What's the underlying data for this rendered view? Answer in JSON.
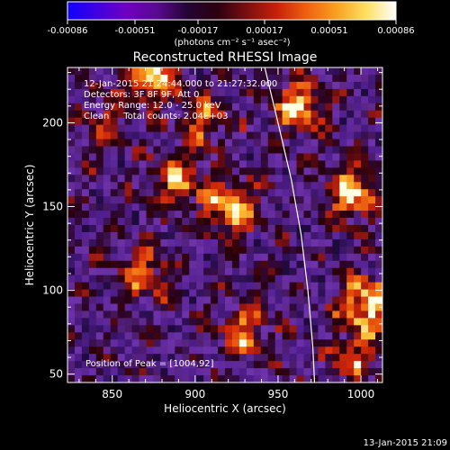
{
  "colorbar": {
    "tick_labels": [
      "-0.00086",
      "-0.00051",
      "-0.00017",
      "0.00017",
      "0.00051",
      "0.00086"
    ],
    "units_label": "(photons cm⁻² s⁻¹ asec⁻²)",
    "colors": [
      "#1000ff",
      "#4000e0",
      "#7000c0",
      "#5a0a90",
      "#240434",
      "#2a0010",
      "#7a1010",
      "#c8200a",
      "#f06010",
      "#f8a020",
      "#fde060",
      "#ffffff"
    ]
  },
  "chart_data": {
    "type": "heatmap",
    "title": "Reconstructed RHESSI Image",
    "xlabel": "Heliocentric X (arcsec)",
    "ylabel": "Heliocentric Y (arcsec)",
    "xlim": [
      823,
      1013
    ],
    "ylim": [
      45,
      233
    ],
    "x_ticks": [
      850,
      900,
      950,
      1000
    ],
    "y_ticks": [
      50,
      100,
      150,
      200
    ],
    "annotations": [
      "12-Jan-2015 21:24:44.000 to 21:27:32.000",
      "Detectors: 3F 8F 9F, Att 0",
      "Energy Range: 12.0 - 25.0 keV",
      "Clean     Total counts: 2.04E+03"
    ],
    "peak_label": "Position of Peak = [1004,92]",
    "limb_curve": [
      [
        942,
        233
      ],
      [
        950,
        200
      ],
      [
        958,
        166
      ],
      [
        964,
        133
      ],
      [
        968,
        100
      ],
      [
        971,
        66
      ],
      [
        972,
        45
      ]
    ],
    "hotspots": [
      {
        "x": 875,
        "y": 228,
        "intensity": 0.9
      },
      {
        "x": 962,
        "y": 210,
        "intensity": 0.85
      },
      {
        "x": 905,
        "y": 200,
        "intensity": 0.6
      },
      {
        "x": 890,
        "y": 165,
        "intensity": 0.7
      },
      {
        "x": 922,
        "y": 148,
        "intensity": 0.85
      },
      {
        "x": 995,
        "y": 158,
        "intensity": 0.9
      },
      {
        "x": 870,
        "y": 110,
        "intensity": 0.65
      },
      {
        "x": 1004,
        "y": 92,
        "intensity": 1.0
      },
      {
        "x": 930,
        "y": 75,
        "intensity": 0.7
      },
      {
        "x": 995,
        "y": 60,
        "intensity": 0.6
      },
      {
        "x": 845,
        "y": 200,
        "intensity": 0.45
      }
    ]
  },
  "footer": {
    "timestamp": "13-Jan-2015 21:09"
  }
}
